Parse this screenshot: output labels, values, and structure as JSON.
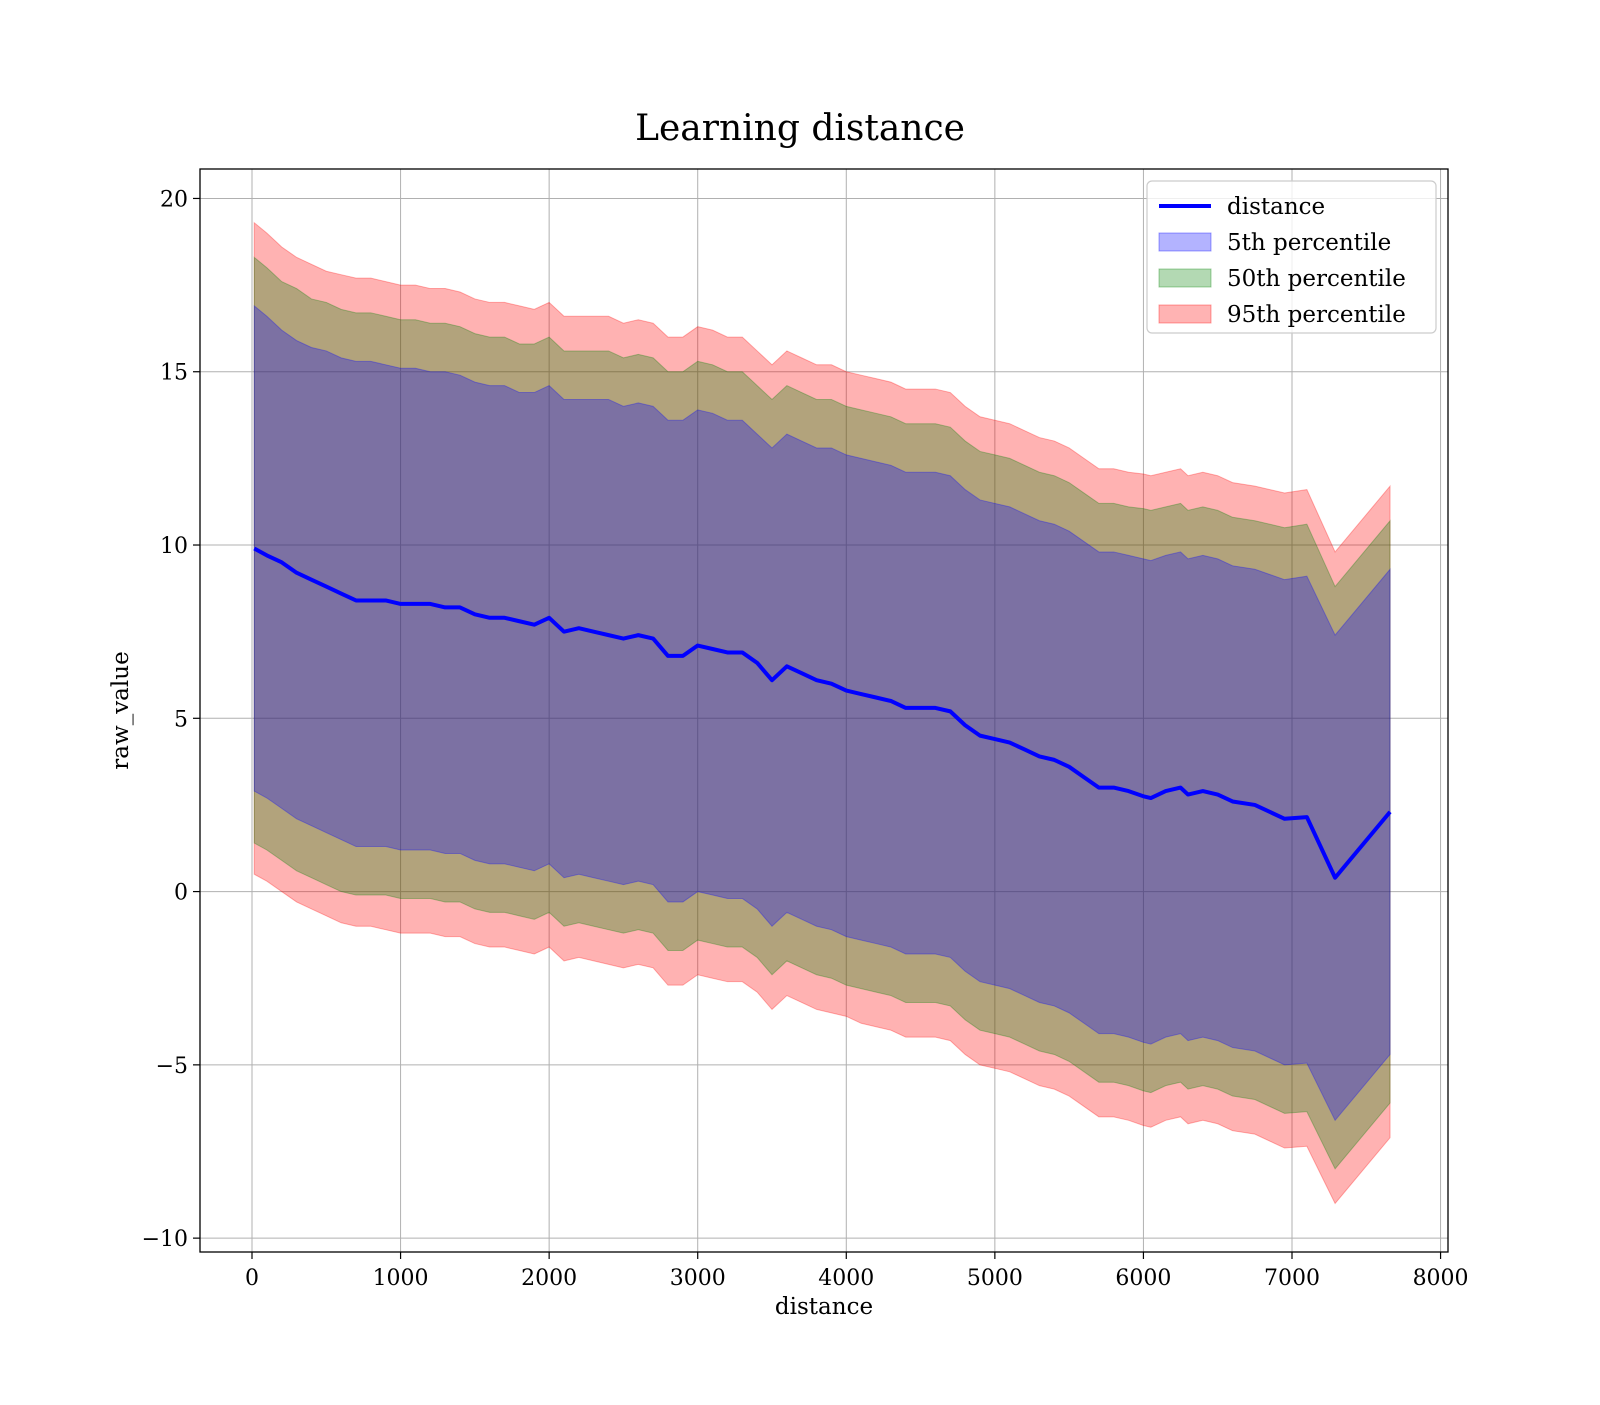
{
  "chart_data": {
    "type": "area",
    "title": "Learning distance",
    "xlabel": "distance",
    "ylabel": "raw_value",
    "xlim": [
      -350,
      8050
    ],
    "ylim": [
      -10.4,
      20.85
    ],
    "xticks": [
      0,
      1000,
      2000,
      3000,
      4000,
      5000,
      6000,
      7000,
      8000
    ],
    "xtick_labels": [
      "0",
      "1000",
      "2000",
      "3000",
      "4000",
      "5000",
      "6000",
      "7000",
      "8000"
    ],
    "yticks": [
      -10,
      -5,
      0,
      5,
      10,
      15,
      20
    ],
    "ytick_labels": [
      "−10",
      "−5",
      "0",
      "5",
      "10",
      "15",
      "20"
    ],
    "grid": true,
    "legend_position": "top-right",
    "x": [
      15,
      100,
      200,
      300,
      400,
      500,
      600,
      700,
      800,
      900,
      1000,
      1100,
      1200,
      1300,
      1400,
      1500,
      1600,
      1700,
      1800,
      1900,
      2000,
      2100,
      2200,
      2300,
      2400,
      2500,
      2600,
      2700,
      2800,
      2900,
      3000,
      3100,
      3200,
      3300,
      3400,
      3500,
      3600,
      3700,
      3800,
      3900,
      4000,
      4100,
      4200,
      4300,
      4400,
      4500,
      4600,
      4700,
      4800,
      4900,
      5000,
      5100,
      5200,
      5300,
      5400,
      5500,
      5600,
      5700,
      5800,
      5900,
      6000,
      6050,
      6150,
      6250,
      6300,
      6400,
      6500,
      6600,
      6750,
      6950,
      7100,
      7290,
      7660
    ],
    "series": [
      {
        "name": "distance",
        "kind": "line",
        "color": "#0000ff",
        "values": [
          9.9,
          9.7,
          9.5,
          9.2,
          9.0,
          8.8,
          8.6,
          8.4,
          8.4,
          8.4,
          8.3,
          8.3,
          8.3,
          8.2,
          8.2,
          8.0,
          7.9,
          7.9,
          7.8,
          7.7,
          7.9,
          7.5,
          7.6,
          7.5,
          7.4,
          7.3,
          7.4,
          7.3,
          6.8,
          6.8,
          7.1,
          7.0,
          6.9,
          6.9,
          6.6,
          6.1,
          6.5,
          6.3,
          6.1,
          6.0,
          5.8,
          5.7,
          5.6,
          5.5,
          5.3,
          5.3,
          5.3,
          5.2,
          4.8,
          4.5,
          4.4,
          4.3,
          4.1,
          3.9,
          3.8,
          3.6,
          3.3,
          3.0,
          3.0,
          2.9,
          2.75,
          2.7,
          2.9,
          3.0,
          2.8,
          2.9,
          2.8,
          2.6,
          2.5,
          2.1,
          2.15,
          0.4,
          2.3
        ]
      },
      {
        "name": "5th percentile",
        "kind": "band",
        "color": "#0000ff",
        "upper": [
          16.9,
          16.6,
          16.2,
          15.9,
          15.7,
          15.6,
          15.4,
          15.3,
          15.3,
          15.2,
          15.1,
          15.1,
          15.0,
          15.0,
          14.9,
          14.7,
          14.6,
          14.6,
          14.4,
          14.4,
          14.6,
          14.2,
          14.2,
          14.2,
          14.2,
          14.0,
          14.1,
          14.0,
          13.6,
          13.6,
          13.9,
          13.8,
          13.6,
          13.6,
          13.2,
          12.8,
          13.2,
          13.0,
          12.8,
          12.8,
          12.6,
          12.5,
          12.4,
          12.3,
          12.1,
          12.1,
          12.1,
          12.0,
          11.6,
          11.3,
          11.2,
          11.1,
          10.9,
          10.7,
          10.6,
          10.4,
          10.1,
          9.8,
          9.8,
          9.7,
          9.6,
          9.55,
          9.7,
          9.8,
          9.6,
          9.7,
          9.6,
          9.4,
          9.3,
          9.0,
          9.1,
          7.4,
          9.3
        ],
        "lower": [
          2.9,
          2.7,
          2.4,
          2.1,
          1.9,
          1.7,
          1.5,
          1.3,
          1.3,
          1.3,
          1.2,
          1.2,
          1.2,
          1.1,
          1.1,
          0.9,
          0.8,
          0.8,
          0.7,
          0.6,
          0.8,
          0.4,
          0.5,
          0.4,
          0.3,
          0.2,
          0.3,
          0.2,
          -0.3,
          -0.3,
          0.0,
          -0.1,
          -0.2,
          -0.2,
          -0.5,
          -1.0,
          -0.6,
          -0.8,
          -1.0,
          -1.1,
          -1.3,
          -1.4,
          -1.5,
          -1.6,
          -1.8,
          -1.8,
          -1.8,
          -1.9,
          -2.3,
          -2.6,
          -2.7,
          -2.8,
          -3.0,
          -3.2,
          -3.3,
          -3.5,
          -3.8,
          -4.1,
          -4.1,
          -4.2,
          -4.35,
          -4.4,
          -4.2,
          -4.1,
          -4.3,
          -4.2,
          -4.3,
          -4.5,
          -4.6,
          -5.0,
          -4.95,
          -6.6,
          -4.7
        ]
      },
      {
        "name": "50th percentile",
        "kind": "band",
        "color": "#008000",
        "upper": [
          18.3,
          18.0,
          17.6,
          17.4,
          17.1,
          17.0,
          16.8,
          16.7,
          16.7,
          16.6,
          16.5,
          16.5,
          16.4,
          16.4,
          16.3,
          16.1,
          16.0,
          16.0,
          15.8,
          15.8,
          16.0,
          15.6,
          15.6,
          15.6,
          15.6,
          15.4,
          15.5,
          15.4,
          15.0,
          15.0,
          15.3,
          15.2,
          15.0,
          15.0,
          14.6,
          14.2,
          14.6,
          14.4,
          14.2,
          14.2,
          14.0,
          13.9,
          13.8,
          13.7,
          13.5,
          13.5,
          13.5,
          13.4,
          13.0,
          12.7,
          12.6,
          12.5,
          12.3,
          12.1,
          12.0,
          11.8,
          11.5,
          11.2,
          11.2,
          11.1,
          11.05,
          11.0,
          11.1,
          11.2,
          11.0,
          11.1,
          11.0,
          10.8,
          10.7,
          10.5,
          10.6,
          8.8,
          10.7
        ],
        "lower": [
          1.4,
          1.2,
          0.9,
          0.6,
          0.4,
          0.2,
          0.0,
          -0.1,
          -0.1,
          -0.1,
          -0.2,
          -0.2,
          -0.2,
          -0.3,
          -0.3,
          -0.5,
          -0.6,
          -0.6,
          -0.7,
          -0.8,
          -0.6,
          -1.0,
          -0.9,
          -1.0,
          -1.1,
          -1.2,
          -1.1,
          -1.2,
          -1.7,
          -1.7,
          -1.4,
          -1.5,
          -1.6,
          -1.6,
          -1.9,
          -2.4,
          -2.0,
          -2.2,
          -2.4,
          -2.5,
          -2.7,
          -2.8,
          -2.9,
          -3.0,
          -3.2,
          -3.2,
          -3.2,
          -3.3,
          -3.7,
          -4.0,
          -4.1,
          -4.2,
          -4.4,
          -4.6,
          -4.7,
          -4.9,
          -5.2,
          -5.5,
          -5.5,
          -5.6,
          -5.75,
          -5.8,
          -5.6,
          -5.5,
          -5.7,
          -5.6,
          -5.7,
          -5.9,
          -6.0,
          -6.4,
          -6.35,
          -8.0,
          -6.1
        ]
      },
      {
        "name": "95th percentile",
        "kind": "band",
        "color": "#ff0000",
        "upper": [
          19.3,
          19.0,
          18.6,
          18.3,
          18.1,
          17.9,
          17.8,
          17.7,
          17.7,
          17.6,
          17.5,
          17.5,
          17.4,
          17.4,
          17.3,
          17.1,
          17.0,
          17.0,
          16.9,
          16.8,
          17.0,
          16.6,
          16.6,
          16.6,
          16.6,
          16.4,
          16.5,
          16.4,
          16.0,
          16.0,
          16.3,
          16.2,
          16.0,
          16.0,
          15.6,
          15.2,
          15.6,
          15.4,
          15.2,
          15.2,
          15.0,
          14.9,
          14.8,
          14.7,
          14.5,
          14.5,
          14.5,
          14.4,
          14.0,
          13.7,
          13.6,
          13.5,
          13.3,
          13.1,
          13.0,
          12.8,
          12.5,
          12.2,
          12.2,
          12.1,
          12.05,
          12.0,
          12.1,
          12.2,
          12.0,
          12.1,
          12.0,
          11.8,
          11.7,
          11.5,
          11.6,
          9.8,
          11.7
        ],
        "lower": [
          0.5,
          0.3,
          0.0,
          -0.3,
          -0.5,
          -0.7,
          -0.9,
          -1.0,
          -1.0,
          -1.1,
          -1.2,
          -1.2,
          -1.2,
          -1.3,
          -1.3,
          -1.5,
          -1.6,
          -1.6,
          -1.7,
          -1.8,
          -1.6,
          -2.0,
          -1.9,
          -2.0,
          -2.1,
          -2.2,
          -2.1,
          -2.2,
          -2.7,
          -2.7,
          -2.4,
          -2.5,
          -2.6,
          -2.6,
          -2.9,
          -3.4,
          -3.0,
          -3.2,
          -3.4,
          -3.5,
          -3.6,
          -3.8,
          -3.9,
          -4.0,
          -4.2,
          -4.2,
          -4.2,
          -4.3,
          -4.7,
          -5.0,
          -5.1,
          -5.2,
          -5.4,
          -5.6,
          -5.7,
          -5.9,
          -6.2,
          -6.5,
          -6.5,
          -6.6,
          -6.75,
          -6.8,
          -6.6,
          -6.5,
          -6.7,
          -6.6,
          -6.7,
          -6.9,
          -7.0,
          -7.4,
          -7.35,
          -9.0,
          -7.1
        ]
      }
    ],
    "legend": [
      {
        "label": "distance",
        "kind": "line",
        "color": "#0000ff"
      },
      {
        "label": "5th percentile",
        "kind": "band",
        "color": "#0000ff"
      },
      {
        "label": "50th percentile",
        "kind": "band",
        "color": "#008000"
      },
      {
        "label": "95th percentile",
        "kind": "band",
        "color": "#ff0000"
      }
    ]
  }
}
